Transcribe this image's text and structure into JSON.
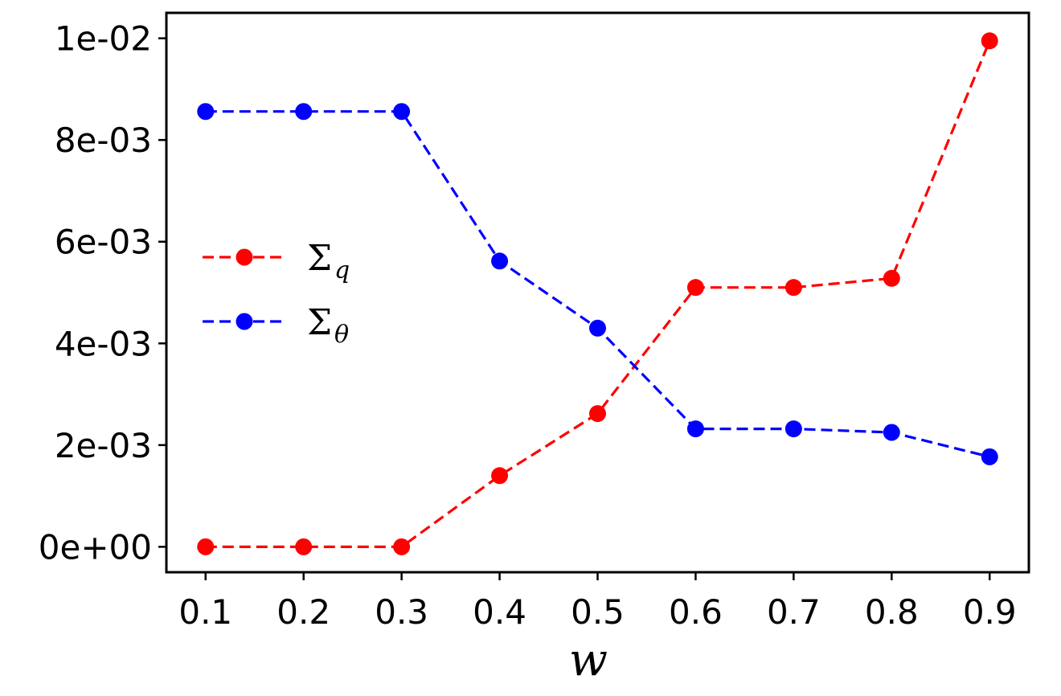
{
  "chart_data": {
    "type": "line",
    "x": [
      0.1,
      0.2,
      0.3,
      0.4,
      0.5,
      0.6,
      0.7,
      0.8,
      0.9
    ],
    "x_tick_labels": [
      "0.1",
      "0.2",
      "0.3",
      "0.4",
      "0.5",
      "0.6",
      "0.7",
      "0.8",
      "0.9"
    ],
    "y_tick_values": [
      0,
      0.002,
      0.004,
      0.006,
      0.008,
      0.01
    ],
    "y_tick_labels": [
      "0e+00",
      "2e-03",
      "4e-03",
      "6e-03",
      "8e-03",
      "1e-02"
    ],
    "xlabel": "w",
    "ylabel": "",
    "xlim": [
      0.06,
      0.94
    ],
    "ylim": [
      -0.0005,
      0.0105
    ],
    "grid": false,
    "legend_position": "center-left",
    "series": [
      {
        "name": "Σ",
        "name_subscript": "q",
        "color": "#ff0000",
        "line_style": "dashed",
        "marker": "circle",
        "values": [
          0.0,
          0.0,
          0.0,
          0.0014,
          0.00262,
          0.0051,
          0.0051,
          0.00528,
          0.00995
        ]
      },
      {
        "name": "Σ",
        "name_subscript": "θ",
        "color": "#0000ff",
        "line_style": "dashed",
        "marker": "circle",
        "values": [
          0.00856,
          0.00856,
          0.00856,
          0.00562,
          0.0043,
          0.00232,
          0.00232,
          0.00225,
          0.00177
        ]
      }
    ]
  }
}
